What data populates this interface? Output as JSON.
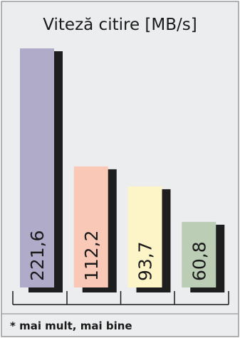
{
  "chart_data": {
    "type": "bar",
    "title": "Viteză citire [MB/s]",
    "categories": [
      "",
      "",
      "",
      ""
    ],
    "values": [
      221.6,
      112.2,
      93.7,
      60.8
    ],
    "value_labels": [
      "221,6",
      "112,2",
      "93,7",
      "60,8"
    ],
    "colors": [
      "#b0abc8",
      "#f9c8b6",
      "#fdf4c8",
      "#bccdb5"
    ],
    "shadow_color": "#1e1e1e",
    "ylim": [
      0,
      221.6
    ],
    "grid": false,
    "legend": "none",
    "footnote": "* mai mult, mai bine"
  }
}
